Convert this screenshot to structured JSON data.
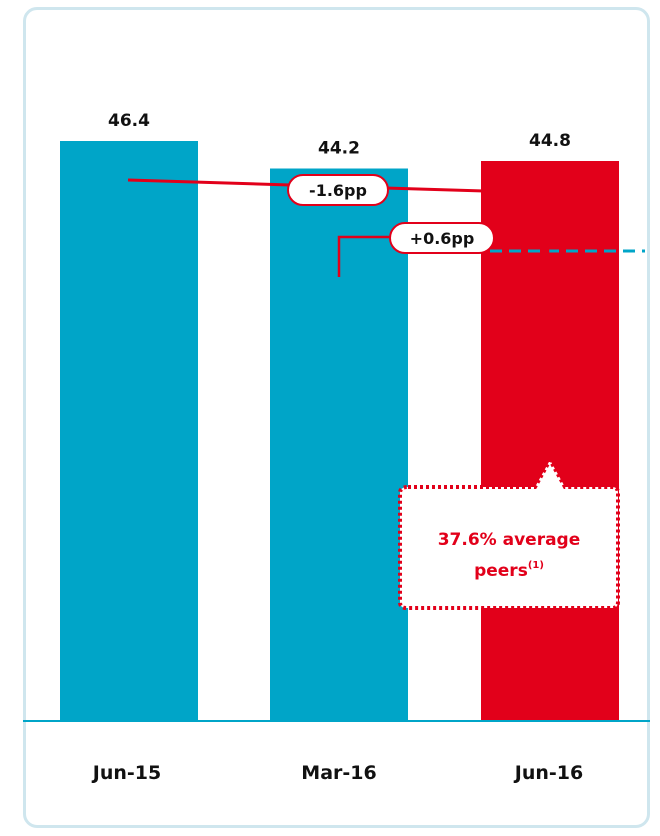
{
  "chart_data": {
    "type": "bar",
    "categories": [
      "Jun-15",
      "Mar-16",
      "Jun-16"
    ],
    "values": [
      46.4,
      44.2,
      44.8
    ],
    "value_labels": [
      "46.4",
      "44.2",
      "44.8"
    ],
    "bar_colors": [
      "#00a5c8",
      "#00a5c8",
      "#e2001a"
    ],
    "ylim": [
      0,
      50
    ],
    "reference_line": {
      "value": 37.6,
      "color": "#00a5c8"
    },
    "annotations": {
      "overall_change": "-1.6pp",
      "quarter_change": "+0.6pp",
      "peers_line1": "37.6% average",
      "peers_line2": "peers",
      "peers_sup": "(1)"
    }
  },
  "colors": {
    "accent_red": "#e2001a",
    "accent_teal": "#00a5c8",
    "frame": "#cfe6ee"
  }
}
